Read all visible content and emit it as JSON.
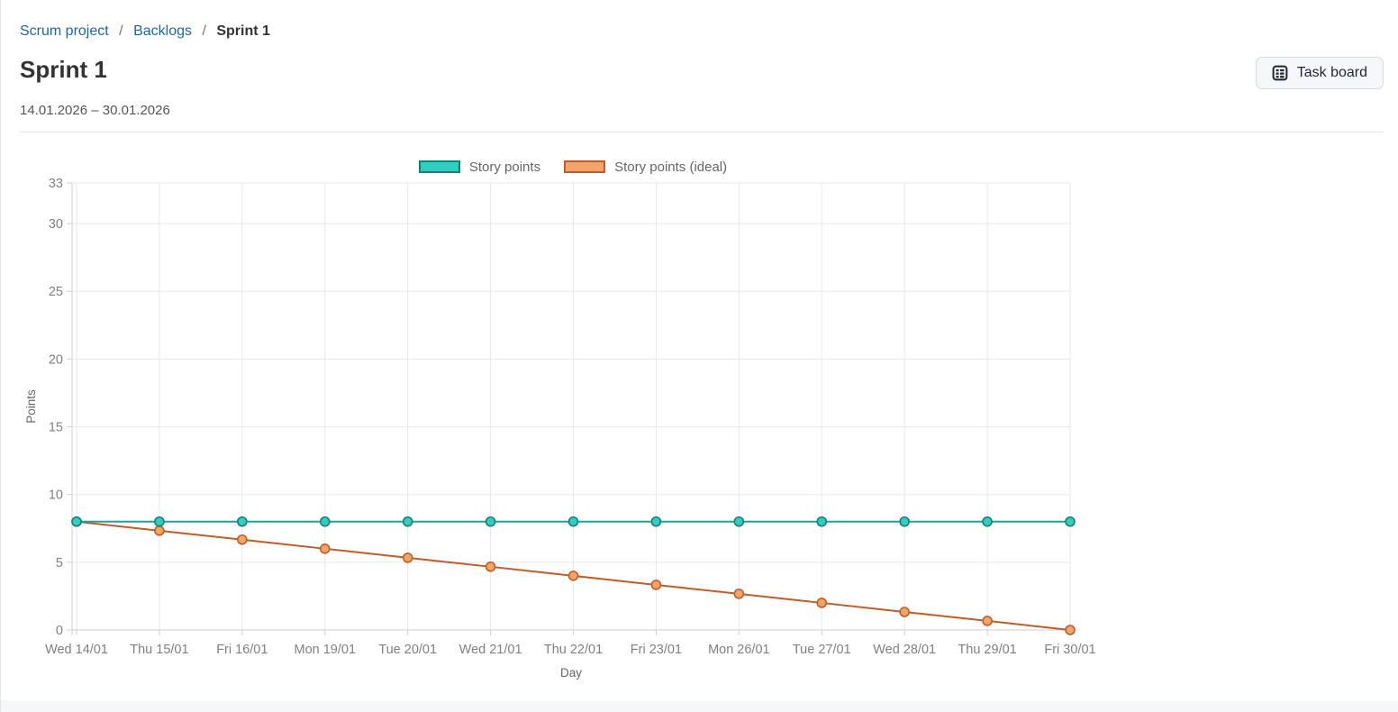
{
  "page": {
    "breadcrumb": {
      "separator": "/",
      "items": [
        {
          "label": "Scrum project"
        },
        {
          "label": "Backlogs"
        },
        {
          "label": "Sprint 1"
        }
      ]
    },
    "title": "Sprint 1",
    "date_range": "14.01.2026 – 30.01.2026",
    "toolbar": {
      "task_board_label": "Task board"
    }
  },
  "ui_colors": {
    "link_blue": "#1a67a3",
    "button_bg": "#f6f7f9",
    "button_border": "#d5dbe1",
    "grid": "#e8e8e8",
    "axis": "#cfcfcf",
    "tick_text": "#808080"
  },
  "chart_data": {
    "type": "line",
    "title": "",
    "xlabel": "Day",
    "ylabel": "Points",
    "ylim": [
      0,
      33
    ],
    "yticks": [
      0,
      5,
      10,
      15,
      20,
      25,
      30,
      33
    ],
    "grid": true,
    "legend_position": "top",
    "categories": [
      "Wed 14/01",
      "Thu 15/01",
      "Fri 16/01",
      "Mon 19/01",
      "Tue 20/01",
      "Wed 21/01",
      "Thu 22/01",
      "Fri 23/01",
      "Mon 26/01",
      "Tue 27/01",
      "Wed 28/01",
      "Thu 29/01",
      "Fri 30/01"
    ],
    "series": [
      {
        "name": "Story points",
        "values": [
          8,
          8,
          8,
          8,
          8,
          8,
          8,
          8,
          8,
          8,
          8,
          8,
          8
        ],
        "line_color": "#1fa29a",
        "marker_fill": "#30cec1",
        "marker_stroke": "#157f78"
      },
      {
        "name": "Story points (ideal)",
        "values": [
          8,
          7.33,
          6.67,
          6,
          5.33,
          4.67,
          4,
          3.33,
          2.67,
          2,
          1.33,
          0.67,
          0
        ],
        "line_color": "#c05c28",
        "marker_fill": "#f4a465",
        "marker_stroke": "#c05c28"
      }
    ]
  }
}
